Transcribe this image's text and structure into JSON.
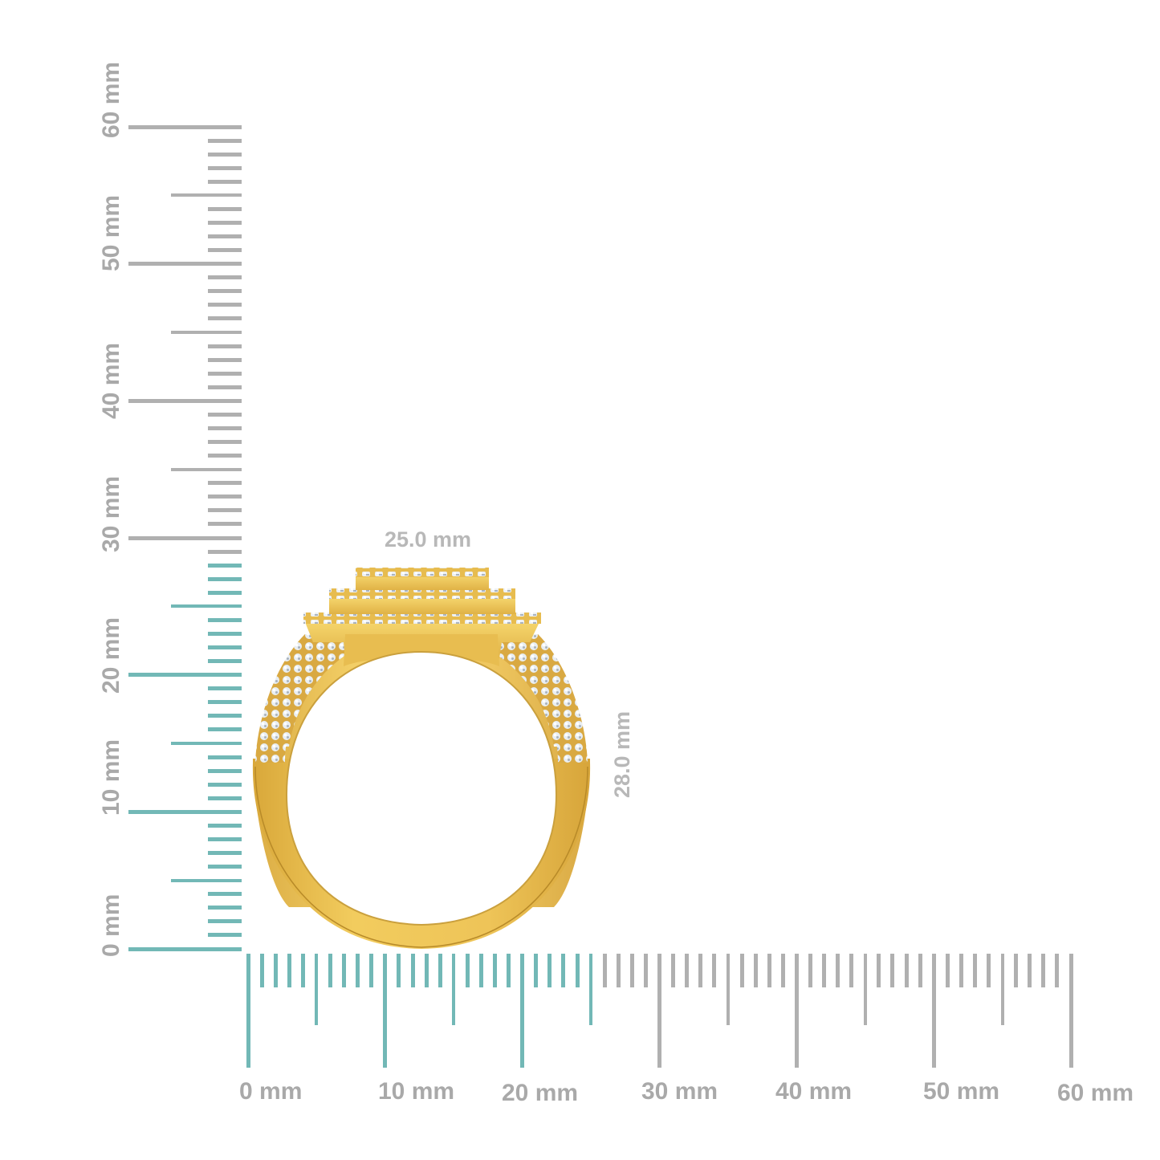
{
  "colors": {
    "background": "#ffffff",
    "ruler_highlight": "#72b8b6",
    "ruler_default": "#b0b0b0",
    "label_text": "#a9a9a9",
    "gold_light": "#f3cf62",
    "gold_mid": "#e4b543",
    "gold_dark": "#c8952b",
    "diamond": "#e8ecf0"
  },
  "vertical_ruler": {
    "unit": "mm",
    "min": 0,
    "max": 60,
    "highlight_max": 28,
    "labels": [
      "0 mm",
      "10 mm",
      "20 mm",
      "30 mm",
      "40 mm",
      "50 mm",
      "60 mm"
    ]
  },
  "horizontal_ruler": {
    "unit": "mm",
    "min": 0,
    "max": 60,
    "highlight_max": 25,
    "labels": [
      "0 mm",
      "10 mm",
      "20 mm",
      "30 mm",
      "40 mm",
      "50 mm",
      "60 mm"
    ]
  },
  "dimensions": {
    "width_label": "25.0 mm",
    "height_label": "28.0 mm"
  },
  "product": {
    "subject": "gold-ring-with-diamond-halo-top",
    "view": "side profile"
  }
}
